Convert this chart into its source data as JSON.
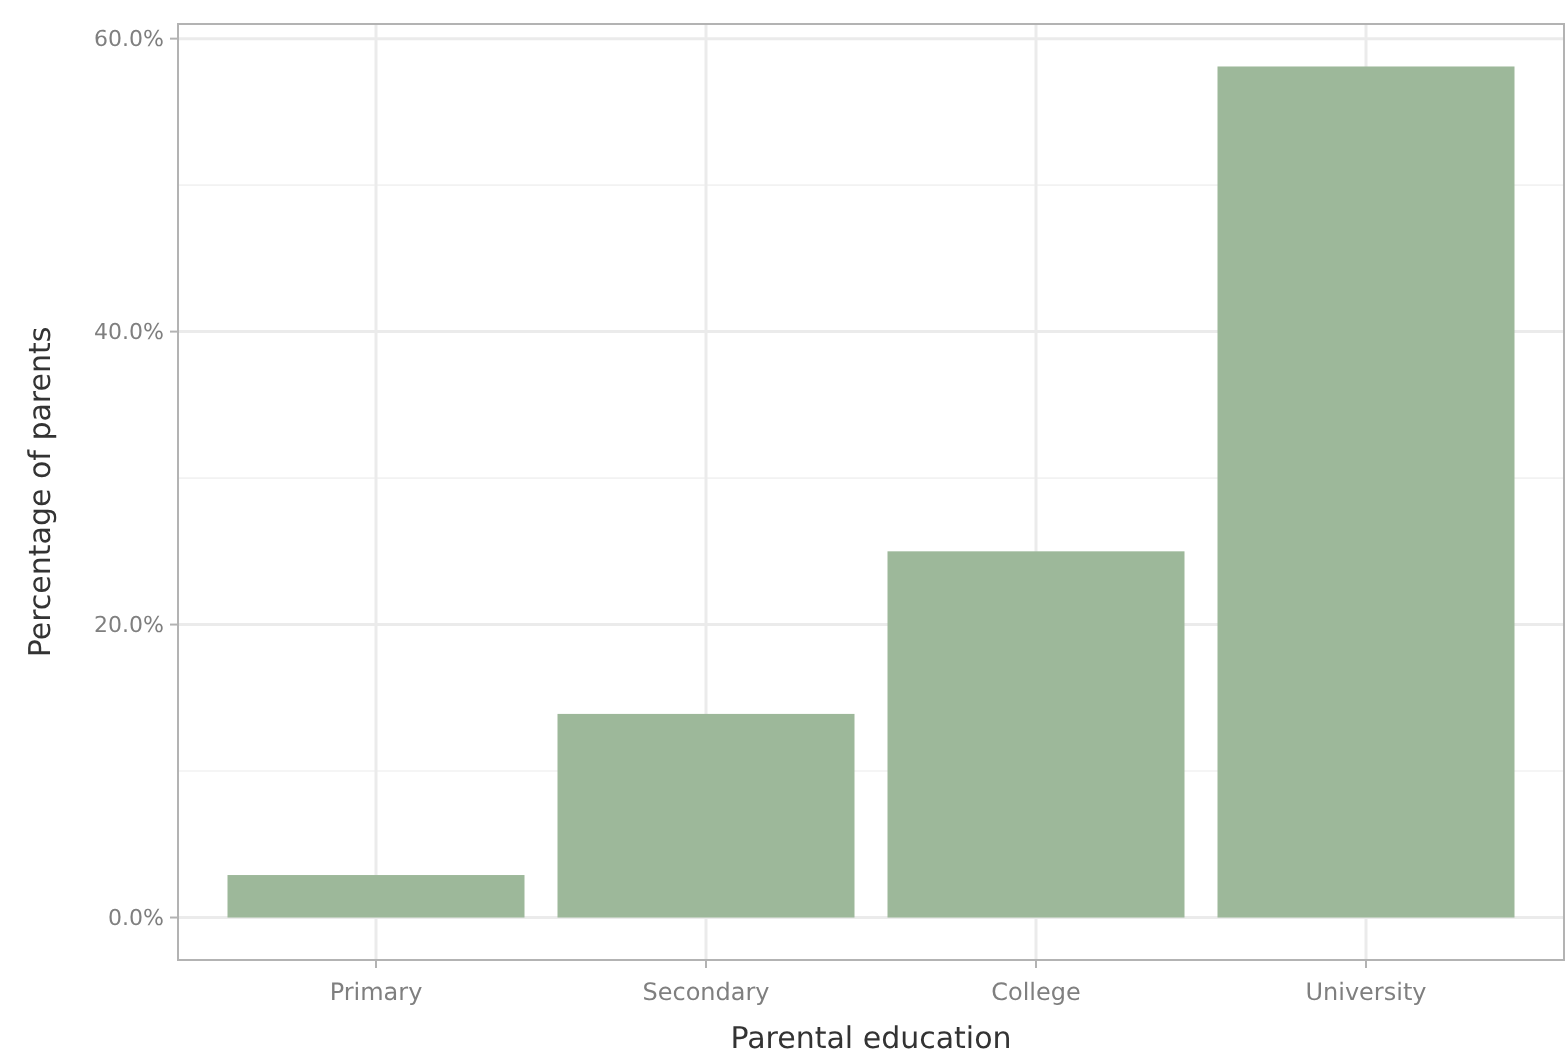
{
  "chart_data": {
    "type": "bar",
    "xlabel": "Parental education",
    "ylabel": "Percentage of parents",
    "categories": [
      "Primary",
      "Secondary",
      "College",
      "University"
    ],
    "values": [
      2.9,
      13.9,
      25.0,
      58.1
    ],
    "color": "#9db89a",
    "ylim": [
      -2.9,
      61
    ],
    "yticks": [
      {
        "value": 0,
        "label": "0.0%"
      },
      {
        "value": 20,
        "label": "20.0%"
      },
      {
        "value": 40,
        "label": "40.0%"
      },
      {
        "value": 60,
        "label": "60.0%"
      }
    ],
    "grid": true
  }
}
